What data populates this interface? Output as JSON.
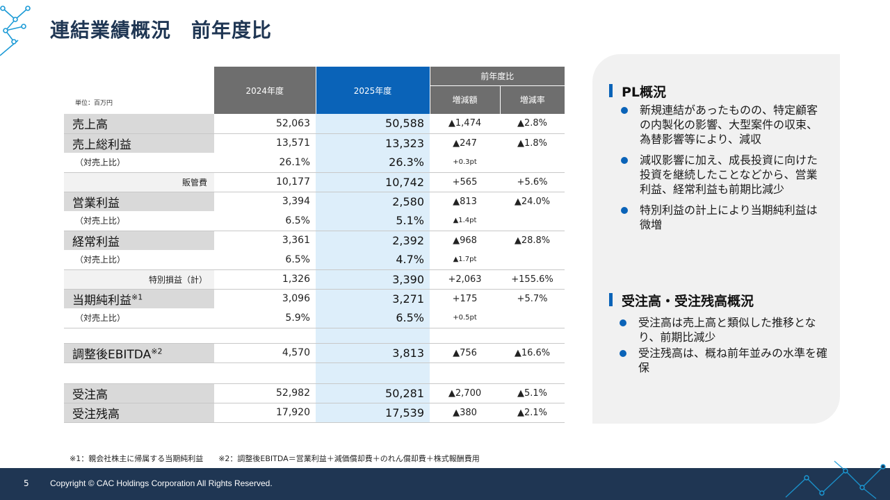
{
  "title": "連結業績概況　前年度比",
  "table": {
    "unit": "単位：百万円",
    "header": {
      "col_2024": "2024年度",
      "col_2025": "2025年度",
      "comparison": "前年度比",
      "diff": "増減額",
      "rate": "増減率"
    },
    "rows": [
      {
        "label": "売上高",
        "v2024": "52,063",
        "v2025": "50,588",
        "diff": "▲1,474",
        "rate": "▲2.8%"
      },
      {
        "label": "売上総利益",
        "v2024": "13,571",
        "v2025": "13,323",
        "diff": "▲247",
        "rate": "▲1.8%"
      },
      {
        "label": "（対売上比）",
        "v2024": "26.1%",
        "v2025": "26.3%",
        "diff": "+0.3pt",
        "rate": ""
      },
      {
        "label": "販管費",
        "v2024": "10,177",
        "v2025": "10,742",
        "diff": "+565",
        "rate": "+5.6%"
      },
      {
        "label": "営業利益",
        "v2024": "3,394",
        "v2025": "2,580",
        "diff": "▲813",
        "rate": "▲24.0%"
      },
      {
        "label": "（対売上比）",
        "v2024": "6.5%",
        "v2025": "5.1%",
        "diff": "▲1.4pt",
        "rate": ""
      },
      {
        "label": "経常利益",
        "v2024": "3,361",
        "v2025": "2,392",
        "diff": "▲968",
        "rate": "▲28.8%"
      },
      {
        "label": "（対売上比）",
        "v2024": "6.5%",
        "v2025": "4.7%",
        "diff": "▲1.7pt",
        "rate": ""
      },
      {
        "label": "特別損益（計）",
        "v2024": "1,326",
        "v2025": "3,390",
        "diff": "+2,063",
        "rate": "+155.6%"
      },
      {
        "label": "当期純利益",
        "sup": "※1",
        "v2024": "3,096",
        "v2025": "3,271",
        "diff": "+175",
        "rate": "+5.7%"
      },
      {
        "label": "（対売上比）",
        "v2024": "5.9%",
        "v2025": "6.5%",
        "diff": "+0.5pt",
        "rate": ""
      },
      {
        "label": "調整後EBITDA",
        "sup": "※2",
        "v2024": "4,570",
        "v2025": "3,813",
        "diff": "▲756",
        "rate": "▲16.6%"
      },
      {
        "label": "受注高",
        "v2024": "52,982",
        "v2025": "50,281",
        "diff": "▲2,700",
        "rate": "▲5.1%"
      },
      {
        "label": "受注残高",
        "v2024": "17,920",
        "v2025": "17,539",
        "diff": "▲380",
        "rate": "▲2.1%"
      }
    ]
  },
  "panel": {
    "pl_title": "PL概況",
    "pl_bullets": [
      "新規連結があったものの、特定顧客の内製化の影響、大型案件の収束、為替影響等により、減収",
      "減収影響に加え、成長投資に向けた投資を継続したことなどから、営業利益、経常利益も前期比減少",
      "特別利益の計上により当期純利益は微増"
    ],
    "order_title": "受注高・受注残高概況",
    "order_bullets": [
      "受注高は売上高と類似した推移となり、前期比減少",
      "受注残高は、概ね前年並みの水準を確保"
    ]
  },
  "footnote": "※1：親会社株主に帰属する当期純利益　　※2：調整後EBITDA＝営業利益＋減価償却費＋のれん償却費＋株式報酬費用",
  "footer": {
    "page_number": "5",
    "copyright": "Copyright © CAC Holdings Corporation All Rights Reserved."
  },
  "colors": {
    "accent_blue": "#0a63b8",
    "navy": "#1f3653",
    "header_gray": "#6e6e6e",
    "highlight": "#ddeefa"
  }
}
